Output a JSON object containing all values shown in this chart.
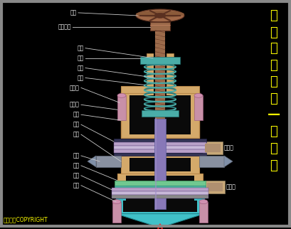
{
  "bg_color": "#000000",
  "title_chars": [
    "自",
    "力",
    "式",
    "调",
    "压",
    "阀",
    "—",
    "指",
    "挥",
    "器"
  ],
  "title_color": "#FFFF00",
  "copyright_text": "东方仿真COPYRIGHT",
  "copyright_color": "#FFFF00",
  "colors": {
    "body_tan": "#D4A96A",
    "body_tan_dark": "#B8884A",
    "body_inner": "#C09050",
    "spring_teal": "#4AADA8",
    "spring_dark": "#2A7A7A",
    "membrane_purple": "#B8A0C8",
    "membrane_light": "#C8B8D8",
    "shaft_purple": "#8878B8",
    "shaft_light": "#A090C8",
    "shaft_dark": "#6060A0",
    "handwheel_brown": "#8B5A3A",
    "handwheel_rim": "#A06848",
    "handwheel_dark": "#5A3020",
    "screw_brown": "#9B6A4A",
    "screw_highlight": "#C08060",
    "bolt_pink": "#D090B0",
    "bolt_dark": "#A06080",
    "connector_tan": "#C8A878",
    "teal_lower": "#40C0C8",
    "teal_dark": "#208890",
    "arrow_red": "#FF2020",
    "cap_pink": "#C890A8",
    "diaphragm_green": "#70C890",
    "diaphragm_teal": "#50B8A0",
    "label_white": "#FFFFFF",
    "label_line": "#CCCCCC",
    "border_gray": "#888888",
    "black_inner": "#0A0A0A",
    "dark_gray": "#222222"
  }
}
